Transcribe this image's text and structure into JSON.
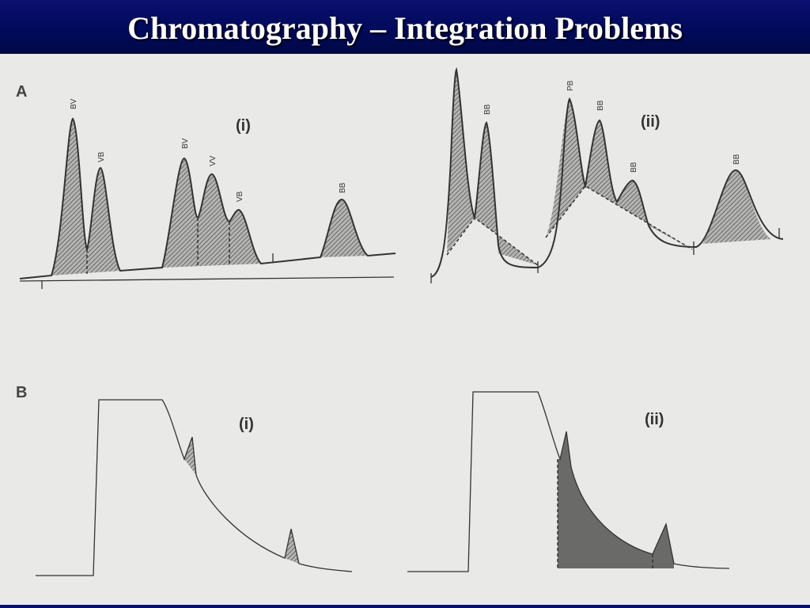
{
  "header": {
    "title": "Chromatography – Integration Problems"
  },
  "panels": [
    {
      "label": "A",
      "subfigures": [
        {
          "label": "(i)",
          "peaks": [
            "BV",
            "VB",
            "BV",
            "VV",
            "VB",
            "BB"
          ]
        },
        {
          "label": "(ii)",
          "peaks": [
            "BB",
            "PB",
            "BB",
            "BB",
            "BB"
          ]
        }
      ]
    },
    {
      "label": "B",
      "subfigures": [
        {
          "label": "(i)"
        },
        {
          "label": "(ii)"
        }
      ]
    }
  ]
}
